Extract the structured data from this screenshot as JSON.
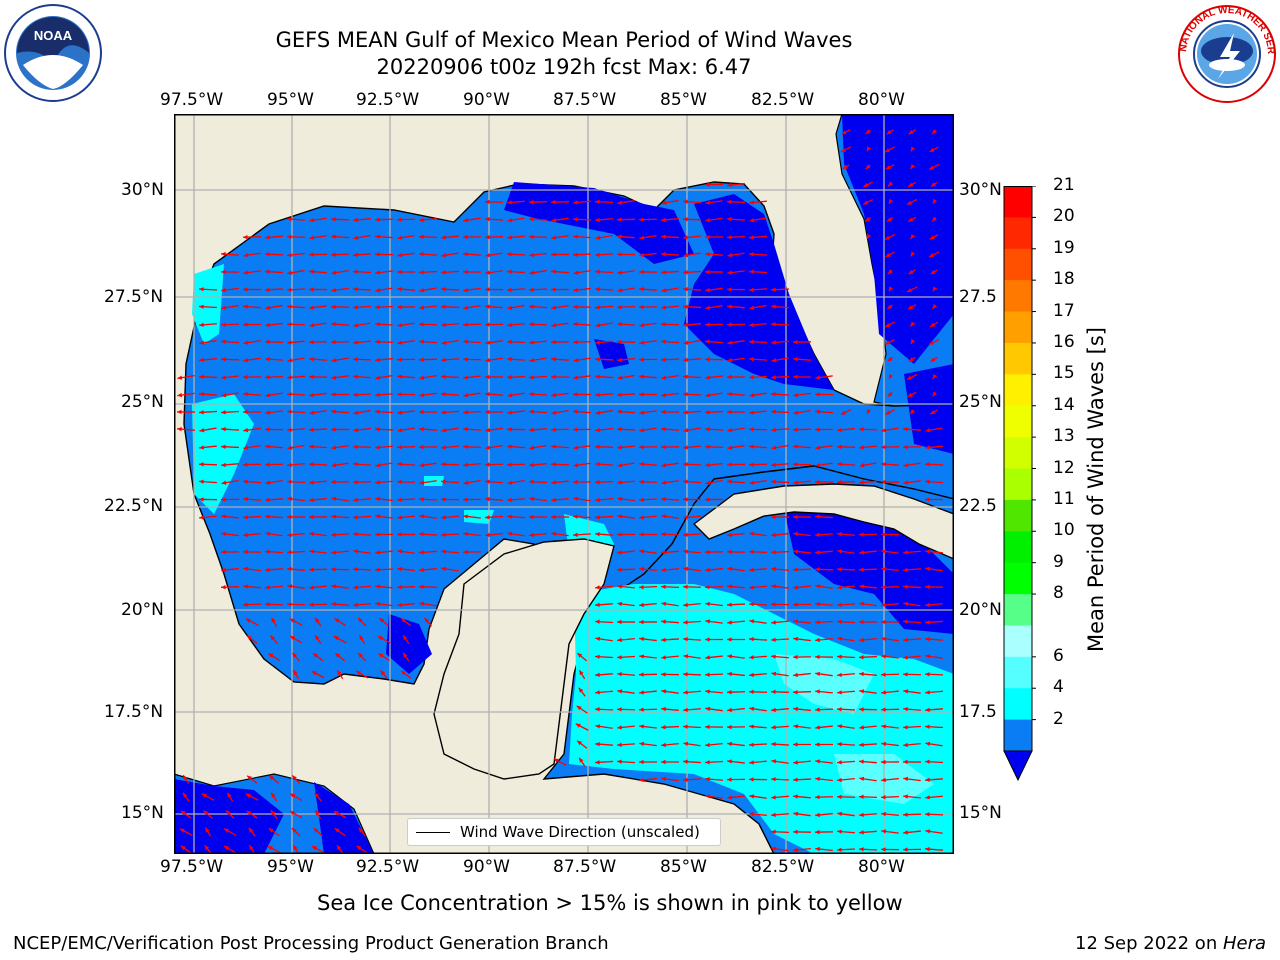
{
  "title": {
    "line1": "GEFS MEAN Gulf of Mexico Mean Period of Wind Waves",
    "line2": "20220906 t00z 192h fcst   Max: 6.47"
  },
  "logos": {
    "left": {
      "name": "noaa-logo",
      "text": "NOAA",
      "ring_text": "NATIONAL OCEANIC AND ATMOSPHERIC ADMINISTRATION · U.S. DEPARTMENT OF COMMERCE"
    },
    "right": {
      "name": "nws-logo",
      "ring_text": "NATIONAL WEATHER SERVICE"
    }
  },
  "map": {
    "lon_ticks": [
      "97.5°W",
      "95°W",
      "92.5°W",
      "90°W",
      "87.5°W",
      "85°W",
      "82.5°W",
      "80°W"
    ],
    "lat_ticks_left": [
      "30°N",
      "27.5°N",
      "25°N",
      "22.5°N",
      "20°N",
      "17.5°N",
      "15°N"
    ],
    "lat_ticks_right": [
      "30°N",
      "27.5",
      "25°N",
      "22.5",
      "20°N",
      "17.5",
      "15°N"
    ],
    "colors": {
      "land": "#efecdc",
      "ocean_2_4": "#0a7df5",
      "ocean_0_2": "#0000f0",
      "ocean_4_6": "#00ffff",
      "ocean_6_8": "#5affff",
      "arrow": "#ff0000",
      "grid": "#b0b0b0"
    }
  },
  "legend": {
    "label": "Wind Wave Direction (unscaled)"
  },
  "colorbar": {
    "title": "Mean Period of Wind Waves [s]",
    "ticks": [
      "21",
      "20",
      "19",
      "18",
      "17",
      "16",
      "15",
      "14",
      "13",
      "12",
      "11",
      "10",
      "9",
      "8",
      "6",
      "4",
      "2"
    ],
    "colors_top_to_bottom": [
      "#ff0000",
      "#ff2800",
      "#ff5000",
      "#ff7800",
      "#ffa000",
      "#ffc800",
      "#fff000",
      "#f0ff00",
      "#d2ff00",
      "#aaff00",
      "#50e600",
      "#00f000",
      "#00ff00",
      "#55ff88",
      "#aaffff",
      "#55ffff",
      "#00ffff",
      "#0a7df5"
    ],
    "under_color": "#0000f0"
  },
  "caption": "Sea Ice Concentration > 15% is shown in pink to yellow",
  "footer": {
    "left": "NCEP/EMC/Verification Post Processing Product Generation Branch",
    "right_date": "12 Sep 2022 on ",
    "right_host": "Hera"
  }
}
